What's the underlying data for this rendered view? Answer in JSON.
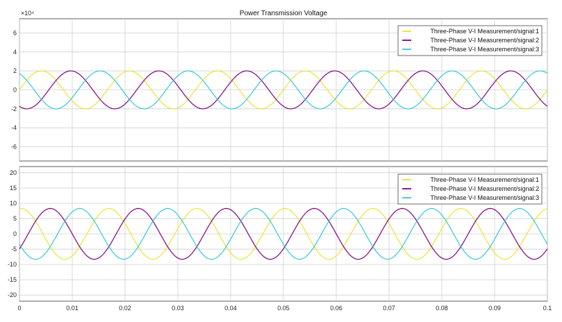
{
  "figure": {
    "background": "#ffffff",
    "x_tick_labels": [
      "0",
      "0.01",
      "0.02",
      "0.03",
      "0.04",
      "0.05",
      "0.06",
      "0.07",
      "0.08",
      "0.09",
      "0.1"
    ]
  },
  "chart_data": [
    {
      "type": "line",
      "title": "Power Transmission Voltage",
      "exponent_label": "×10⁴",
      "xlabel": "",
      "ylabel": "",
      "xlim": [
        0,
        0.1
      ],
      "ylim": [
        -7.5,
        7.5
      ],
      "y_ticks": [
        6,
        4,
        2,
        0,
        -2,
        -4,
        -6
      ],
      "grid": true,
      "legend_position": "top-right",
      "frequency_hz": 60,
      "series": [
        {
          "name": "Three-Phase V-I Measurement/signal:1",
          "color": "#e6e633",
          "amplitude": 2,
          "phase_deg": 0
        },
        {
          "name": "Three-Phase V-I Measurement/signal:2",
          "color": "#800080",
          "amplitude": 2,
          "phase_deg": -120
        },
        {
          "name": "Three-Phase V-I Measurement/signal:3",
          "color": "#33c8d8",
          "amplitude": 2,
          "phase_deg": 120
        }
      ]
    },
    {
      "type": "line",
      "title": "",
      "xlabel": "",
      "ylabel": "",
      "xlim": [
        0,
        0.1
      ],
      "ylim": [
        -22,
        22
      ],
      "y_ticks": [
        20,
        15,
        10,
        5,
        0,
        -5,
        -10,
        -15,
        -20
      ],
      "grid": true,
      "legend_position": "top-right",
      "frequency_hz": 60,
      "series": [
        {
          "name": "Three-Phase V-I Measurement/signal:1",
          "color": "#e6e633",
          "amplitude": 8.3,
          "phase_deg": 84
        },
        {
          "name": "Three-Phase V-I Measurement/signal:2",
          "color": "#800080",
          "amplitude": 8.3,
          "phase_deg": -36
        },
        {
          "name": "Three-Phase V-I Measurement/signal:3",
          "color": "#33c8d8",
          "amplitude": 8.3,
          "phase_deg": 204
        }
      ]
    }
  ]
}
